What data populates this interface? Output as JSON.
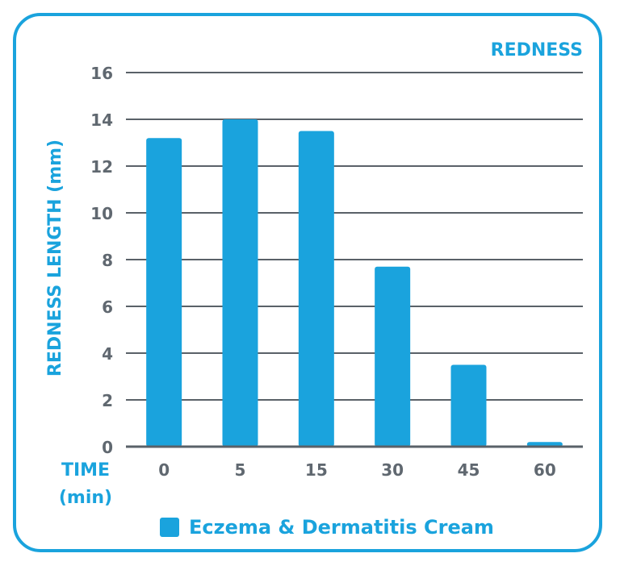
{
  "colors": {
    "accent": "#1aa3dd",
    "axis_text": "#606870",
    "grid": "#5a6168"
  },
  "chart_data": {
    "type": "bar",
    "title": "REDNESS",
    "ylabel": "REDNESS LENGTH (mm)",
    "xlabel": "TIME (min)",
    "xlabel_line1": "TIME",
    "xlabel_line2": "(min)",
    "categories": [
      "0",
      "5",
      "15",
      "30",
      "45",
      "60"
    ],
    "series": [
      {
        "name": "Eczema & Dermatitis Cream",
        "values": [
          13.2,
          14.0,
          13.5,
          7.7,
          3.5,
          0.2
        ]
      }
    ],
    "ylim": [
      0,
      16
    ],
    "yticks": [
      0,
      2,
      4,
      6,
      8,
      10,
      12,
      14,
      16
    ],
    "grid": true,
    "legend_position": "bottom-center"
  }
}
